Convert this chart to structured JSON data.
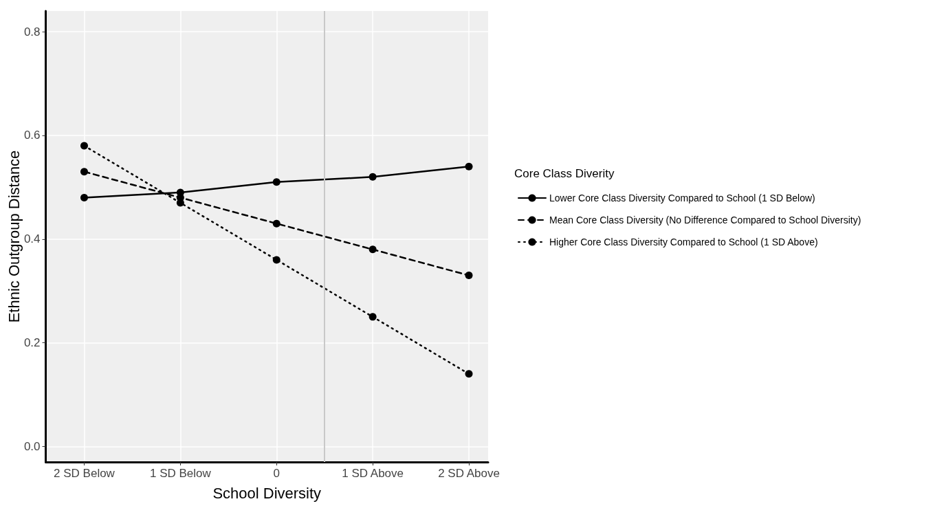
{
  "chart_data": {
    "type": "line",
    "xlabel": "School Diversity",
    "ylabel": "Ethnic Outgroup Distance",
    "legend_title": "Core Class Diverity",
    "x": [
      -2,
      -1,
      0,
      1,
      2
    ],
    "xlim": [
      -2.4,
      2.2
    ],
    "xticks": [
      {
        "value": -2,
        "label": "2 SD Below"
      },
      {
        "value": -1,
        "label": "1 SD Below"
      },
      {
        "value": 0,
        "label": "0"
      },
      {
        "value": 1,
        "label": "1 SD Above"
      },
      {
        "value": 2,
        "label": "2 SD Above"
      }
    ],
    "ylim": [
      -0.03,
      0.84
    ],
    "yticks": [
      {
        "value": 0,
        "label": "0.0"
      },
      {
        "value": 0.2,
        "label": "0.2"
      },
      {
        "value": 0.4,
        "label": "0.4"
      },
      {
        "value": 0.6,
        "label": "0.6"
      },
      {
        "value": 0.8,
        "label": "0.8"
      }
    ],
    "series": [
      {
        "name": "Lower Core Class Diversity Compared to School (1 SD Below)",
        "color": "#000000",
        "line_style": "solid",
        "values": [
          0.48,
          0.49,
          0.51,
          0.52,
          0.54
        ]
      },
      {
        "name": "Mean Core Class Diversity (No Difference Compared to School Diversity)",
        "color": "#000000",
        "line_style": "dashed",
        "values": [
          0.53,
          0.48,
          0.43,
          0.38,
          0.33
        ]
      },
      {
        "name": "Higher Core Class Diversity Compared to School (1 SD Above)",
        "color": "#000000",
        "line_style": "dotted",
        "values": [
          0.58,
          0.47,
          0.36,
          0.25,
          0.14
        ]
      }
    ],
    "ref_lines": [
      {
        "axis": "x",
        "value": 0.5,
        "color": "#c8c8c8"
      }
    ],
    "marker": "circle",
    "grid": true,
    "legend": "right"
  }
}
